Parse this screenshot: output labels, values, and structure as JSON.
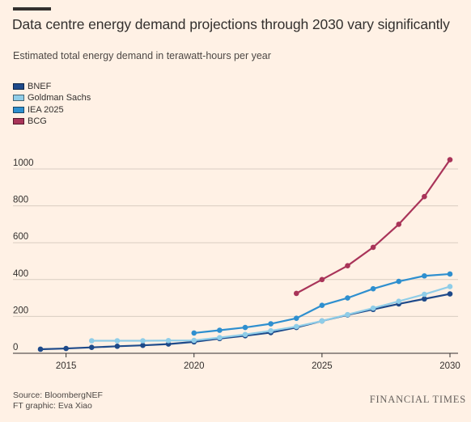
{
  "header": {
    "title": "Data centre energy demand projections through 2030 vary significantly",
    "subtitle": "Estimated total energy demand in terawatt-hours per year"
  },
  "footer": {
    "source": "Source: BloombergNEF",
    "graphic": "FT graphic: Eva Xiao",
    "brand": "FINANCIAL TIMES"
  },
  "chart_data": {
    "type": "line",
    "xlabel": "",
    "ylabel": "",
    "xlim": [
      2014,
      2030
    ],
    "ylim": [
      0,
      1000
    ],
    "xticks": [
      "2015",
      "2020",
      "2025",
      "2030"
    ],
    "yticks": [
      "0",
      "200",
      "400",
      "600",
      "800",
      "1000"
    ],
    "grid": true,
    "legend": "top-left",
    "series": [
      {
        "name": "BNEF",
        "color": "#1e4a8a",
        "x": [
          2014,
          2015,
          2016,
          2017,
          2018,
          2019,
          2020,
          2021,
          2022,
          2023,
          2024,
          2025,
          2026,
          2027,
          2028,
          2029,
          2030
        ],
        "values": [
          22,
          26,
          32,
          38,
          43,
          50,
          62,
          80,
          95,
          112,
          140,
          175,
          208,
          238,
          268,
          295,
          322
        ]
      },
      {
        "name": "Goldman Sachs",
        "color": "#8fcde8",
        "x": [
          2016,
          2017,
          2018,
          2019,
          2020,
          2021,
          2022,
          2023,
          2024,
          2025,
          2026,
          2027,
          2028,
          2029,
          2030
        ],
        "values": [
          68,
          68,
          68,
          69,
          70,
          85,
          102,
          122,
          145,
          175,
          210,
          245,
          282,
          320,
          362
        ]
      },
      {
        "name": "IEA 2025",
        "color": "#2e8fcf",
        "x": [
          2020,
          2021,
          2022,
          2023,
          2024,
          2025,
          2026,
          2027,
          2028,
          2029,
          2030
        ],
        "values": [
          110,
          125,
          140,
          160,
          190,
          260,
          300,
          350,
          390,
          420,
          430
        ]
      },
      {
        "name": "BCG",
        "color": "#a93459",
        "x": [
          2024,
          2025,
          2026,
          2027,
          2028,
          2029,
          2030
        ],
        "values": [
          325,
          400,
          475,
          575,
          700,
          850,
          1050
        ]
      }
    ]
  }
}
